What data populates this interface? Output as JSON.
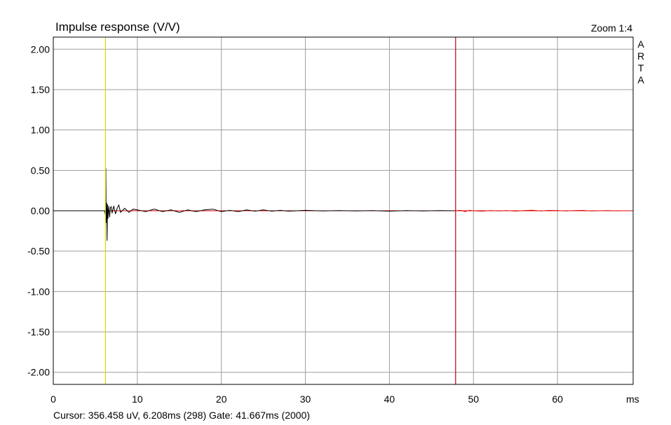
{
  "chart_data": {
    "type": "line",
    "title": "Impulse response (V/V)",
    "zoom_label": "Zoom 1:4",
    "brand": "ARTA",
    "xlabel": "ms",
    "ylabel": "",
    "xlim": [
      0,
      69
    ],
    "ylim": [
      -2.15,
      2.15
    ],
    "x_ticks": [
      0,
      10,
      20,
      30,
      40,
      50,
      60
    ],
    "x_tick_labels": [
      "0",
      "10",
      "20",
      "30",
      "40",
      "50",
      "60"
    ],
    "y_ticks": [
      2.0,
      1.5,
      1.0,
      0.5,
      0.0,
      -0.5,
      -1.0,
      -1.5,
      -2.0
    ],
    "y_tick_labels": [
      "2.00",
      "1.50",
      "1.00",
      "0.50",
      "0.00",
      "-0.50",
      "-1.00",
      "-1.50",
      "-2.00"
    ],
    "grid": true,
    "cursor_ms": 6.208,
    "gate_end_ms": 47.875,
    "status_text": "Cursor: 356.458 uV, 6.208ms (298)  Gate: 41.667ms (2000)",
    "colors": {
      "grid": "#9e9e9e",
      "frame": "#000000",
      "trace": "#000000",
      "trace_outside_gate": "#e00000",
      "cursor": "#d8d800",
      "gate": "#c00000"
    },
    "series": [
      {
        "segment": "inside-gate",
        "x": [
          0,
          6.1,
          6.2,
          6.25,
          6.3,
          6.35,
          6.4,
          6.45,
          6.5,
          6.6,
          6.7,
          6.8,
          6.9,
          7.0,
          7.2,
          7.4,
          7.6,
          7.8,
          8.0,
          8.5,
          9.0,
          9.5,
          10.0,
          11.0,
          12.0,
          13.0,
          14.0,
          15.0,
          16.0,
          17.0,
          18.0,
          19.0,
          20.0,
          21.0,
          22.0,
          23.0,
          24.0,
          25.0,
          26.0,
          27.0,
          28.0,
          30.0,
          32.0,
          34.0,
          36.0,
          38.0,
          40.0,
          42.0,
          44.0,
          46.0,
          47.875
        ],
        "y": [
          0,
          0,
          -0.05,
          0.53,
          -0.15,
          0.1,
          -0.37,
          0.08,
          -0.1,
          0.06,
          -0.08,
          0.04,
          0.05,
          -0.03,
          0.06,
          -0.04,
          0.03,
          0.07,
          -0.02,
          0.03,
          -0.02,
          0.02,
          0.01,
          -0.01,
          0.02,
          -0.01,
          0.01,
          -0.02,
          0.01,
          -0.01,
          0.01,
          0.02,
          -0.01,
          0.005,
          -0.01,
          0.01,
          -0.005,
          0.01,
          -0.005,
          0.005,
          -0.005,
          0.005,
          -0.003,
          0.003,
          -0.003,
          0.003,
          -0.005,
          0.003,
          -0.003,
          0.002,
          0
        ]
      },
      {
        "segment": "outside-gate",
        "x": [
          47.875,
          48.5,
          49.0,
          49.5,
          50.0,
          51.0,
          52.0,
          53.0,
          54.0,
          55.0,
          56.0,
          57.0,
          58.0,
          59.0,
          60.0,
          61.0,
          62.0,
          63.0,
          64.0,
          65.0,
          66.0,
          67.0,
          68.0,
          69.0
        ],
        "y": [
          0,
          0.005,
          -0.01,
          0.005,
          0.0,
          -0.005,
          0.003,
          -0.003,
          0.002,
          -0.004,
          0.003,
          0.006,
          -0.002,
          0.004,
          0.003,
          -0.002,
          0.002,
          0.004,
          -0.003,
          0.0,
          0.002,
          -0.001,
          0.0,
          0.0
        ]
      }
    ]
  }
}
